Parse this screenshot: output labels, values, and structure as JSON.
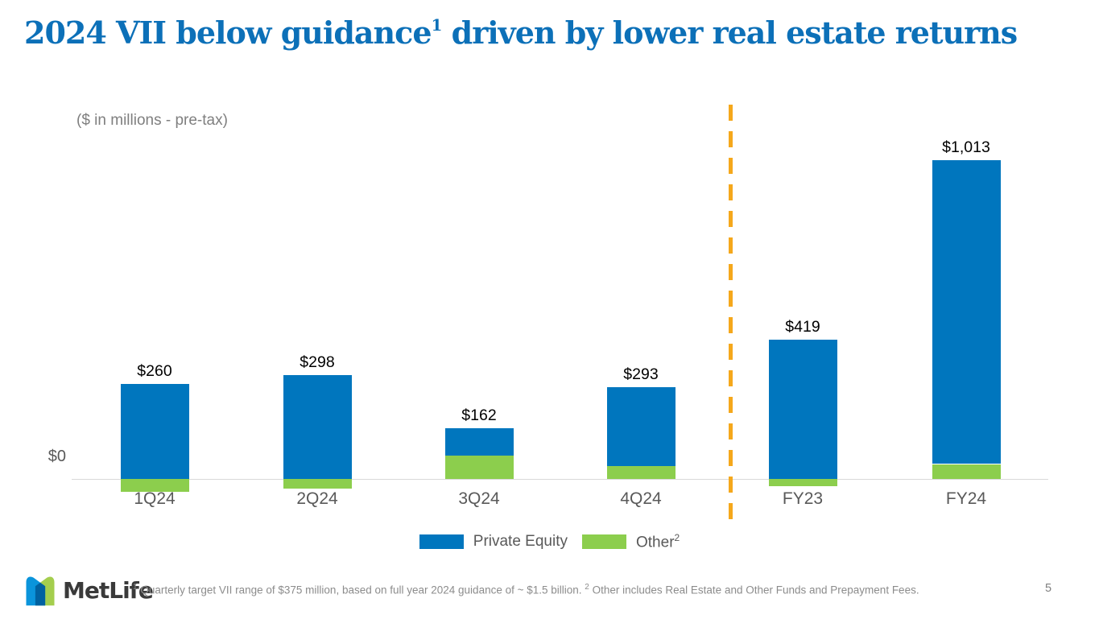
{
  "title": {
    "part1": "2024 VII below guidance",
    "sup": "1",
    "part2": " driven by lower real estate returns"
  },
  "chart_data": {
    "type": "bar",
    "stacked": true,
    "unit_note": "($ in millions - pre-tax)",
    "categories": [
      "1Q24",
      "2Q24",
      "3Q24",
      "4Q24",
      "FY23",
      "FY24"
    ],
    "series": [
      {
        "name": "Private Equity",
        "sup": "",
        "color": "#0076BE",
        "values": [
          301,
          329,
          88,
          250,
          442,
          966
        ]
      },
      {
        "name": "Other",
        "sup": "2",
        "color": "#8CCE4D",
        "values": [
          -41,
          -31,
          74,
          43,
          -23,
          47
        ]
      }
    ],
    "totals": [
      260,
      298,
      162,
      293,
      419,
      1013
    ],
    "total_labels": [
      "$260",
      "$298",
      "$162",
      "$293",
      "$419",
      "$1,013"
    ],
    "y_zero_label": "$0",
    "axis_line_color": "#D9D9D9",
    "separator": {
      "between": [
        "4Q24",
        "FY23"
      ],
      "style": "dashed",
      "color": "#F5A81C"
    },
    "legend_position": "bottom"
  },
  "footer": {
    "logo_text": "MetLife",
    "logo_colors": {
      "blue": "#0090DA",
      "green": "#A4CE4E",
      "overlap": "#0061A0"
    },
    "footnote": {
      "sup1": "1",
      "text1": " Quarterly target VII range of $375 million, based on full year 2024 guidance of ~ $1.5 billion. ",
      "sup2": "2",
      "text2": " Other includes Real Estate and Other Funds and Prepayment Fees."
    },
    "page_number": "5"
  }
}
